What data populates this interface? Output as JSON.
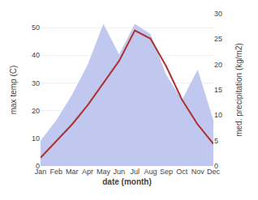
{
  "chart_data": {
    "type": "line",
    "xlabel": "date (month)",
    "ylabel": "max temp (C)",
    "y2label": "med. precipitation (kg/m2)",
    "categories": [
      "Jan",
      "Feb",
      "Mar",
      "Apr",
      "May",
      "Jun",
      "Jul",
      "Aug",
      "Sep",
      "Oct",
      "Nov",
      "Dec"
    ],
    "series": [
      {
        "type": "area",
        "axis": "y2",
        "color": "#c0c8f0",
        "values": [
          5,
          9,
          14,
          20,
          28,
          22,
          28,
          26,
          18,
          13,
          19,
          9
        ]
      },
      {
        "type": "line",
        "color": "#b03030",
        "values": [
          3,
          9,
          15,
          22,
          30,
          38,
          49,
          46,
          36,
          24,
          15,
          8
        ]
      }
    ],
    "ylim": [
      0,
      55
    ],
    "yticks": [
      0,
      10,
      20,
      30,
      40,
      50
    ],
    "y2lim": [
      0,
      30
    ],
    "y2ticks": [
      0,
      5,
      10,
      15,
      20,
      25,
      30
    ],
    "grid": true
  }
}
